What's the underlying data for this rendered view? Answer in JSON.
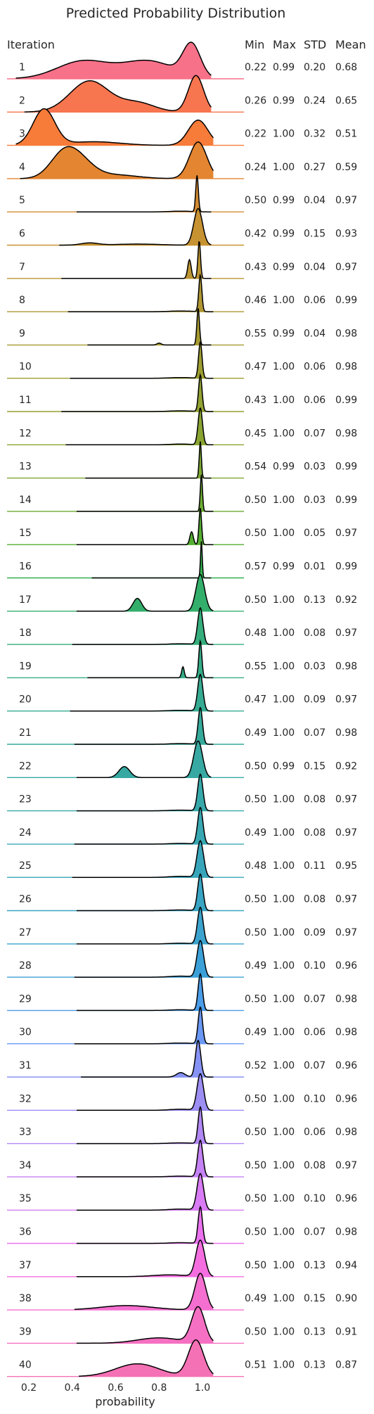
{
  "chart_data": {
    "type": "ridgeline",
    "title": "Predicted Probability Distribution",
    "xlabel": "probability",
    "xlim": [
      0.05,
      1.15
    ],
    "xticks": [
      "0.2",
      "0.4",
      "0.6",
      "0.8",
      "1.0"
    ],
    "xtick_values": [
      0.2,
      0.4,
      0.6,
      0.8,
      1.0
    ],
    "row_header": "Iteration",
    "stat_headers": [
      "Min",
      "Max",
      "STD",
      "Mean"
    ],
    "grid": false,
    "series": [
      {
        "name": "1",
        "min": "0.22",
        "max": "0.99",
        "std": "0.20",
        "mean": "0.68",
        "peaks": [
          [
            0.45,
            0.12,
            0.55
          ],
          [
            0.75,
            0.12,
            0.55
          ],
          [
            0.95,
            0.04,
            1.0
          ]
        ],
        "color": "#f77189"
      },
      {
        "name": "2",
        "min": "0.26",
        "max": "0.99",
        "std": "0.24",
        "mean": "0.65",
        "peaks": [
          [
            0.48,
            0.09,
            0.85
          ],
          [
            0.7,
            0.08,
            0.25
          ],
          [
            0.97,
            0.035,
            1.0
          ]
        ],
        "color": "#f7754f"
      },
      {
        "name": "3",
        "min": "0.22",
        "max": "1.00",
        "std": "0.32",
        "mean": "0.51",
        "peaks": [
          [
            0.27,
            0.05,
            1.0
          ],
          [
            0.5,
            0.12,
            0.1
          ],
          [
            0.98,
            0.045,
            0.7
          ]
        ],
        "color": "#f77b39"
      },
      {
        "name": "4",
        "min": "0.24",
        "max": "1.00",
        "std": "0.27",
        "mean": "0.59",
        "peaks": [
          [
            0.35,
            0.06,
            0.45
          ],
          [
            0.42,
            0.07,
            0.55
          ],
          [
            0.6,
            0.1,
            0.1
          ],
          [
            0.98,
            0.04,
            1.0
          ]
        ],
        "color": "#e48531"
      },
      {
        "name": "5",
        "min": "0.50",
        "max": "0.99",
        "std": "0.04",
        "mean": "0.97",
        "peaks": [
          [
            0.975,
            0.006,
            1.0
          ],
          [
            0.9,
            0.05,
            0.02
          ]
        ],
        "color": "#d38b32"
      },
      {
        "name": "6",
        "min": "0.42",
        "max": "0.99",
        "std": "0.15",
        "mean": "0.93",
        "peaks": [
          [
            0.48,
            0.04,
            0.06
          ],
          [
            0.7,
            0.1,
            0.03
          ],
          [
            0.98,
            0.02,
            1.0
          ]
        ],
        "color": "#c79232"
      },
      {
        "name": "7",
        "min": "0.43",
        "max": "0.99",
        "std": "0.04",
        "mean": "0.97",
        "peaks": [
          [
            0.94,
            0.008,
            0.5
          ],
          [
            0.985,
            0.006,
            1.0
          ]
        ],
        "color": "#bb9532"
      },
      {
        "name": "8",
        "min": "0.46",
        "max": "1.00",
        "std": "0.06",
        "mean": "0.99",
        "peaks": [
          [
            0.99,
            0.007,
            1.0
          ],
          [
            0.9,
            0.05,
            0.02
          ]
        ],
        "color": "#b09732"
      },
      {
        "name": "9",
        "min": "0.55",
        "max": "0.99",
        "std": "0.04",
        "mean": "0.98",
        "peaks": [
          [
            0.8,
            0.01,
            0.05
          ],
          [
            0.98,
            0.006,
            1.0
          ]
        ],
        "color": "#a69b31"
      },
      {
        "name": "10",
        "min": "0.47",
        "max": "1.00",
        "std": "0.06",
        "mean": "0.98",
        "peaks": [
          [
            0.99,
            0.008,
            1.0
          ],
          [
            0.9,
            0.05,
            0.02
          ]
        ],
        "color": "#9d9d31"
      },
      {
        "name": "11",
        "min": "0.43",
        "max": "1.00",
        "std": "0.06",
        "mean": "0.99",
        "peaks": [
          [
            0.99,
            0.008,
            1.0
          ],
          [
            0.9,
            0.05,
            0.02
          ]
        ],
        "color": "#93a131"
      },
      {
        "name": "12",
        "min": "0.45",
        "max": "1.00",
        "std": "0.07",
        "mean": "0.98",
        "peaks": [
          [
            0.99,
            0.01,
            1.0
          ],
          [
            0.9,
            0.05,
            0.02
          ]
        ],
        "color": "#89a431"
      },
      {
        "name": "13",
        "min": "0.54",
        "max": "0.99",
        "std": "0.03",
        "mean": "0.99",
        "peaks": [
          [
            0.99,
            0.005,
            1.0
          ]
        ],
        "color": "#7ca731"
      },
      {
        "name": "14",
        "min": "0.50",
        "max": "1.00",
        "std": "0.03",
        "mean": "0.99",
        "peaks": [
          [
            0.995,
            0.005,
            1.0
          ]
        ],
        "color": "#6caa31"
      },
      {
        "name": "15",
        "min": "0.50",
        "max": "1.00",
        "std": "0.05",
        "mean": "0.97",
        "peaks": [
          [
            0.95,
            0.008,
            0.35
          ],
          [
            0.99,
            0.006,
            1.0
          ]
        ],
        "color": "#54ae31"
      },
      {
        "name": "16",
        "min": "0.57",
        "max": "0.99",
        "std": "0.01",
        "mean": "0.99",
        "peaks": [
          [
            0.995,
            0.004,
            1.0
          ]
        ],
        "color": "#33b04f"
      },
      {
        "name": "17",
        "min": "0.50",
        "max": "1.00",
        "std": "0.13",
        "mean": "0.92",
        "peaks": [
          [
            0.7,
            0.02,
            0.35
          ],
          [
            0.99,
            0.02,
            1.0
          ]
        ],
        "color": "#34ae6b"
      },
      {
        "name": "18",
        "min": "0.48",
        "max": "1.00",
        "std": "0.08",
        "mean": "0.97",
        "peaks": [
          [
            0.99,
            0.012,
            1.0
          ],
          [
            0.9,
            0.05,
            0.02
          ]
        ],
        "color": "#35ad7c"
      },
      {
        "name": "19",
        "min": "0.55",
        "max": "1.00",
        "std": "0.03",
        "mean": "0.98",
        "peaks": [
          [
            0.91,
            0.006,
            0.3
          ],
          [
            0.99,
            0.007,
            1.0
          ]
        ],
        "color": "#35ac88"
      },
      {
        "name": "20",
        "min": "0.47",
        "max": "1.00",
        "std": "0.09",
        "mean": "0.97",
        "peaks": [
          [
            0.99,
            0.012,
            1.0
          ],
          [
            0.9,
            0.05,
            0.02
          ]
        ],
        "color": "#36ab92"
      },
      {
        "name": "21",
        "min": "0.49",
        "max": "1.00",
        "std": "0.07",
        "mean": "0.98",
        "peaks": [
          [
            0.99,
            0.01,
            1.0
          ],
          [
            0.9,
            0.05,
            0.02
          ]
        ],
        "color": "#36aa9a"
      },
      {
        "name": "22",
        "min": "0.50",
        "max": "0.99",
        "std": "0.15",
        "mean": "0.92",
        "peaks": [
          [
            0.64,
            0.025,
            0.3
          ],
          [
            0.98,
            0.02,
            1.0
          ]
        ],
        "color": "#37a9a2"
      },
      {
        "name": "23",
        "min": "0.50",
        "max": "1.00",
        "std": "0.08",
        "mean": "0.97",
        "peaks": [
          [
            0.99,
            0.012,
            1.0
          ],
          [
            0.9,
            0.05,
            0.02
          ]
        ],
        "color": "#37a8aa"
      },
      {
        "name": "24",
        "min": "0.49",
        "max": "1.00",
        "std": "0.08",
        "mean": "0.97",
        "peaks": [
          [
            0.99,
            0.012,
            1.0
          ],
          [
            0.9,
            0.05,
            0.02
          ]
        ],
        "color": "#38a7b2"
      },
      {
        "name": "25",
        "min": "0.48",
        "max": "1.00",
        "std": "0.11",
        "mean": "0.95",
        "peaks": [
          [
            0.99,
            0.015,
            1.0
          ],
          [
            0.9,
            0.05,
            0.03
          ]
        ],
        "color": "#38a5ba"
      },
      {
        "name": "26",
        "min": "0.50",
        "max": "1.00",
        "std": "0.08",
        "mean": "0.97",
        "peaks": [
          [
            0.99,
            0.012,
            1.0
          ],
          [
            0.9,
            0.05,
            0.02
          ]
        ],
        "color": "#39a4c3"
      },
      {
        "name": "27",
        "min": "0.50",
        "max": "1.00",
        "std": "0.09",
        "mean": "0.97",
        "peaks": [
          [
            0.99,
            0.013,
            1.0
          ],
          [
            0.9,
            0.05,
            0.02
          ]
        ],
        "color": "#3ba3cd"
      },
      {
        "name": "28",
        "min": "0.49",
        "max": "1.00",
        "std": "0.10",
        "mean": "0.96",
        "peaks": [
          [
            0.99,
            0.015,
            1.0
          ],
          [
            0.9,
            0.05,
            0.03
          ]
        ],
        "color": "#3ca0d8"
      },
      {
        "name": "29",
        "min": "0.50",
        "max": "1.00",
        "std": "0.07",
        "mean": "0.98",
        "peaks": [
          [
            0.99,
            0.01,
            1.0
          ],
          [
            0.9,
            0.05,
            0.02
          ]
        ],
        "color": "#4b9de8"
      },
      {
        "name": "30",
        "min": "0.49",
        "max": "1.00",
        "std": "0.06",
        "mean": "0.98",
        "peaks": [
          [
            0.99,
            0.01,
            1.0
          ],
          [
            0.9,
            0.05,
            0.02
          ]
        ],
        "color": "#6a98f4"
      },
      {
        "name": "31",
        "min": "0.52",
        "max": "1.00",
        "std": "0.07",
        "mean": "0.96",
        "peaks": [
          [
            0.9,
            0.02,
            0.12
          ],
          [
            0.98,
            0.012,
            1.0
          ]
        ],
        "color": "#8793f4"
      },
      {
        "name": "32",
        "min": "0.50",
        "max": "1.00",
        "std": "0.10",
        "mean": "0.96",
        "peaks": [
          [
            0.99,
            0.015,
            1.0
          ],
          [
            0.9,
            0.05,
            0.03
          ]
        ],
        "color": "#9d8ef4"
      },
      {
        "name": "33",
        "min": "0.50",
        "max": "1.00",
        "std": "0.06",
        "mean": "0.98",
        "peaks": [
          [
            0.99,
            0.01,
            1.0
          ],
          [
            0.9,
            0.05,
            0.02
          ]
        ],
        "color": "#b188f4"
      },
      {
        "name": "34",
        "min": "0.50",
        "max": "1.00",
        "std": "0.08",
        "mean": "0.97",
        "peaks": [
          [
            0.99,
            0.012,
            1.0
          ],
          [
            0.9,
            0.05,
            0.02
          ]
        ],
        "color": "#c582f4"
      },
      {
        "name": "35",
        "min": "0.50",
        "max": "1.00",
        "std": "0.10",
        "mean": "0.96",
        "peaks": [
          [
            0.99,
            0.015,
            1.0
          ],
          [
            0.9,
            0.05,
            0.03
          ]
        ],
        "color": "#d87bf4"
      },
      {
        "name": "36",
        "min": "0.50",
        "max": "1.00",
        "std": "0.07",
        "mean": "0.98",
        "peaks": [
          [
            0.99,
            0.01,
            1.0
          ],
          [
            0.9,
            0.05,
            0.02
          ]
        ],
        "color": "#ea72ef"
      },
      {
        "name": "37",
        "min": "0.50",
        "max": "1.00",
        "std": "0.13",
        "mean": "0.94",
        "peaks": [
          [
            0.99,
            0.02,
            1.0
          ],
          [
            0.85,
            0.08,
            0.05
          ]
        ],
        "color": "#f46ee0"
      },
      {
        "name": "38",
        "min": "0.49",
        "max": "1.00",
        "std": "0.15",
        "mean": "0.90",
        "peaks": [
          [
            0.99,
            0.025,
            1.0
          ],
          [
            0.65,
            0.12,
            0.12
          ]
        ],
        "color": "#f56fd0"
      },
      {
        "name": "39",
        "min": "0.50",
        "max": "1.00",
        "std": "0.13",
        "mean": "0.91",
        "peaks": [
          [
            0.98,
            0.03,
            1.0
          ],
          [
            0.8,
            0.1,
            0.15
          ]
        ],
        "color": "#f570c2"
      },
      {
        "name": "40",
        "min": "0.51",
        "max": "1.00",
        "std": "0.13",
        "mean": "0.87",
        "peaks": [
          [
            0.97,
            0.035,
            1.0
          ],
          [
            0.7,
            0.1,
            0.35
          ]
        ],
        "color": "#f571b5"
      }
    ]
  }
}
